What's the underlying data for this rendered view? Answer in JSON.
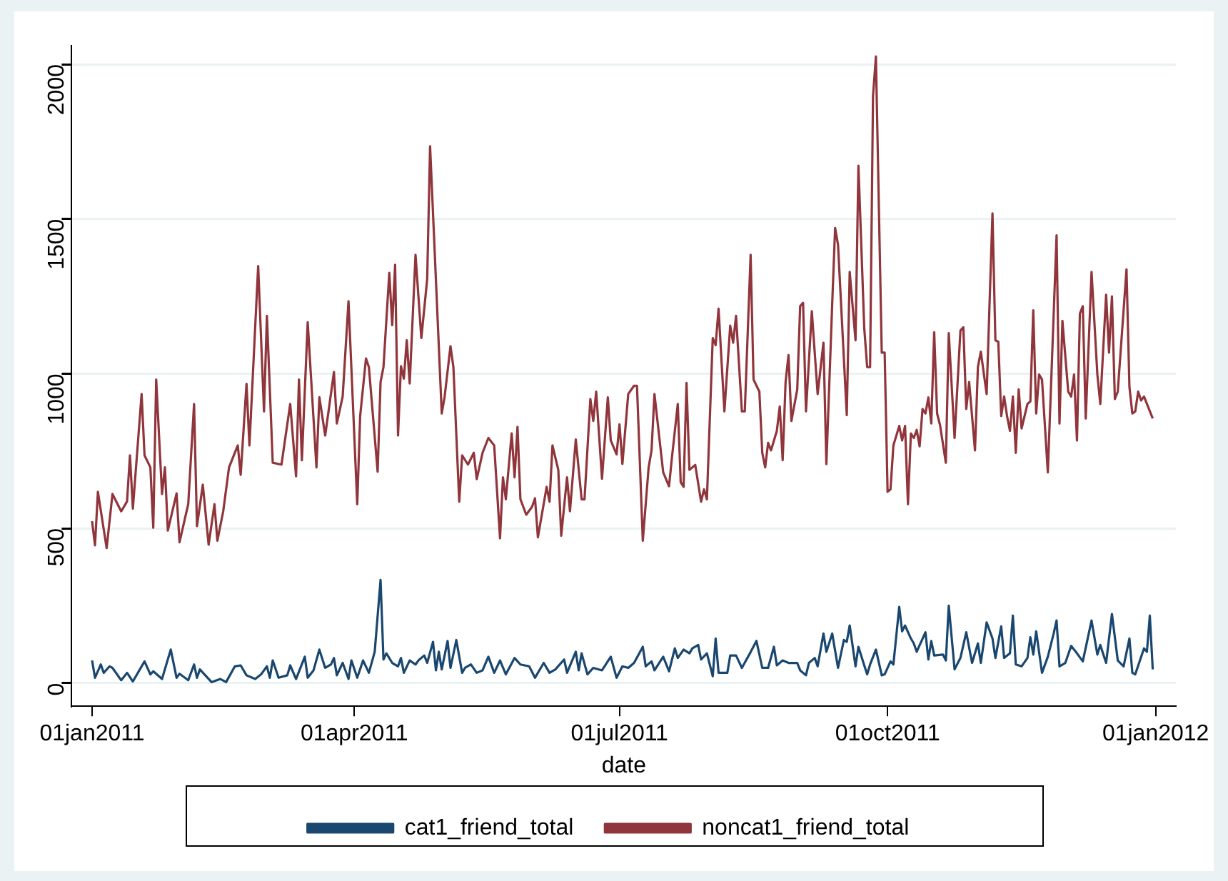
{
  "chart_data": {
    "type": "line",
    "xlabel": "date",
    "grid": "y",
    "legend": "bottom",
    "xlim": [
      "2010-12-25",
      "2012-01-08"
    ],
    "xticks": [
      {
        "value": "2011-01-01",
        "label": "01jan2011"
      },
      {
        "value": "2011-04-01",
        "label": "01apr2011"
      },
      {
        "value": "2011-07-01",
        "label": "01jul2011"
      },
      {
        "value": "2011-10-01",
        "label": "01oct2011"
      },
      {
        "value": "2012-01-01",
        "label": "01jan2012"
      }
    ],
    "ylim": [
      -75,
      2060
    ],
    "yticks": [
      0,
      500,
      1000,
      1500,
      2000
    ],
    "series": [
      {
        "name": "cat1_friend_total",
        "color": "#1a476f",
        "x": [
          "2011-01-01",
          "2011-01-02",
          "2011-01-04",
          "2011-01-05",
          "2011-01-07",
          "2011-01-08",
          "2011-01-11",
          "2011-01-13",
          "2011-01-15",
          "2011-01-19",
          "2011-01-21",
          "2011-01-22",
          "2011-01-25",
          "2011-01-28",
          "2011-01-30",
          "2011-01-31",
          "2011-02-03",
          "2011-02-05",
          "2011-02-06",
          "2011-02-07",
          "2011-02-11",
          "2011-02-14",
          "2011-02-16",
          "2011-02-19",
          "2011-02-21",
          "2011-02-23",
          "2011-02-26",
          "2011-02-28",
          "2011-03-02",
          "2011-03-03",
          "2011-03-04",
          "2011-03-06",
          "2011-03-09",
          "2011-03-10",
          "2011-03-12",
          "2011-03-15",
          "2011-03-16",
          "2011-03-18",
          "2011-03-20",
          "2011-03-22",
          "2011-03-24",
          "2011-03-25",
          "2011-03-26",
          "2011-03-28",
          "2011-03-30",
          "2011-03-31",
          "2011-04-02",
          "2011-04-04",
          "2011-04-06",
          "2011-04-08",
          "2011-04-10",
          "2011-04-11",
          "2011-04-12",
          "2011-04-14",
          "2011-04-16",
          "2011-04-17",
          "2011-04-18",
          "2011-04-20",
          "2011-04-22",
          "2011-04-23",
          "2011-04-25",
          "2011-04-26",
          "2011-04-28",
          "2011-04-29",
          "2011-04-30",
          "2011-05-01",
          "2011-05-03",
          "2011-05-04",
          "2011-05-06",
          "2011-05-08",
          "2011-05-09",
          "2011-05-11",
          "2011-05-13",
          "2011-05-15",
          "2011-05-17",
          "2011-05-19",
          "2011-05-21",
          "2011-05-23",
          "2011-05-26",
          "2011-05-28",
          "2011-05-31",
          "2011-06-02",
          "2011-06-05",
          "2011-06-07",
          "2011-06-09",
          "2011-06-12",
          "2011-06-13",
          "2011-06-16",
          "2011-06-17",
          "2011-06-18",
          "2011-06-20",
          "2011-06-22",
          "2011-06-25",
          "2011-06-28",
          "2011-06-30",
          "2011-07-02",
          "2011-07-04",
          "2011-07-06",
          "2011-07-09",
          "2011-07-10",
          "2011-07-12",
          "2011-07-13",
          "2011-07-16",
          "2011-07-18",
          "2011-07-20",
          "2011-07-21",
          "2011-07-23",
          "2011-07-25",
          "2011-07-26",
          "2011-07-28",
          "2011-07-29",
          "2011-07-31",
          "2011-08-02",
          "2011-08-03",
          "2011-08-04",
          "2011-08-07",
          "2011-08-08",
          "2011-08-10",
          "2011-08-12",
          "2011-08-15",
          "2011-08-17",
          "2011-08-19",
          "2011-08-21",
          "2011-08-23",
          "2011-08-24",
          "2011-08-26",
          "2011-08-28",
          "2011-08-31",
          "2011-09-01",
          "2011-09-03",
          "2011-09-04",
          "2011-09-06",
          "2011-09-07",
          "2011-09-09",
          "2011-09-10",
          "2011-09-12",
          "2011-09-14",
          "2011-09-16",
          "2011-09-17",
          "2011-09-18",
          "2011-09-20",
          "2011-09-21",
          "2011-09-23",
          "2011-09-24",
          "2011-09-25",
          "2011-09-27",
          "2011-09-29",
          "2011-09-30",
          "2011-10-02",
          "2011-10-03",
          "2011-10-05",
          "2011-10-06",
          "2011-10-07",
          "2011-10-09",
          "2011-10-10",
          "2011-10-11",
          "2011-10-14",
          "2011-10-15",
          "2011-10-16",
          "2011-10-17",
          "2011-10-20",
          "2011-10-21",
          "2011-10-22",
          "2011-10-24",
          "2011-10-26",
          "2011-10-28",
          "2011-10-30",
          "2011-11-01",
          "2011-11-02",
          "2011-11-04",
          "2011-11-06",
          "2011-11-07",
          "2011-11-09",
          "2011-11-10",
          "2011-11-12",
          "2011-11-13",
          "2011-11-14",
          "2011-11-16",
          "2011-11-18",
          "2011-11-19",
          "2011-11-20",
          "2011-11-21",
          "2011-11-23",
          "2011-11-25",
          "2011-11-27",
          "2011-11-28",
          "2011-11-29",
          "2011-12-01",
          "2011-12-03",
          "2011-12-05",
          "2011-12-07",
          "2011-12-10",
          "2011-12-12",
          "2011-12-13",
          "2011-12-15",
          "2011-12-17",
          "2011-12-19",
          "2011-12-21",
          "2011-12-23",
          "2011-12-24",
          "2011-12-25",
          "2011-12-28",
          "2011-12-29",
          "2011-12-30",
          "2011-12-31"
        ],
        "values": [
          73,
          17,
          60,
          33,
          54,
          49,
          9,
          33,
          5,
          70,
          28,
          38,
          13,
          108,
          17,
          30,
          9,
          60,
          17,
          44,
          3,
          13,
          3,
          54,
          57,
          25,
          13,
          28,
          54,
          17,
          73,
          17,
          25,
          57,
          13,
          85,
          17,
          41,
          108,
          49,
          60,
          81,
          25,
          65,
          13,
          73,
          17,
          73,
          33,
          101,
          333,
          76,
          96,
          65,
          54,
          81,
          33,
          73,
          60,
          73,
          89,
          65,
          133,
          41,
          101,
          44,
          136,
          49,
          139,
          33,
          49,
          60,
          33,
          41,
          85,
          33,
          73,
          28,
          81,
          60,
          54,
          17,
          65,
          33,
          44,
          76,
          33,
          101,
          41,
          96,
          28,
          49,
          41,
          85,
          17,
          54,
          49,
          65,
          117,
          54,
          70,
          41,
          85,
          38,
          112,
          81,
          108,
          96,
          112,
          123,
          76,
          96,
          22,
          144,
          33,
          33,
          89,
          89,
          49,
          100,
          136,
          49,
          49,
          117,
          57,
          73,
          65,
          65,
          41,
          25,
          65,
          81,
          54,
          160,
          101,
          160,
          49,
          139,
          133,
          186,
          54,
          117,
          57,
          28,
          60,
          108,
          25,
          28,
          70,
          60,
          246,
          167,
          186,
          144,
          128,
          101,
          164,
          76,
          136,
          89,
          92,
          73,
          250,
          44,
          81,
          164,
          65,
          128,
          65,
          196,
          144,
          81,
          183,
          81,
          96,
          218,
          60,
          54,
          81,
          148,
          92,
          167,
          33,
          85,
          160,
          202,
          54,
          65,
          120,
          96,
          70,
          202,
          92,
          123,
          65,
          223,
          73,
          54,
          144,
          33,
          28,
          112,
          101,
          218,
          44
        ]
      },
      {
        "name": "noncat1_friend_total",
        "color": "#90353b",
        "x": [
          "2011-01-01",
          "2011-01-02",
          "2011-01-03",
          "2011-01-06",
          "2011-01-08",
          "2011-01-11",
          "2011-01-13",
          "2011-01-14",
          "2011-01-15",
          "2011-01-18",
          "2011-01-19",
          "2011-01-21",
          "2011-01-22",
          "2011-01-23",
          "2011-01-25",
          "2011-01-26",
          "2011-01-27",
          "2011-01-30",
          "2011-01-31",
          "2011-02-03",
          "2011-02-05",
          "2011-02-06",
          "2011-02-08",
          "2011-02-10",
          "2011-02-12",
          "2011-02-13",
          "2011-02-15",
          "2011-02-17",
          "2011-02-20",
          "2011-02-21",
          "2011-02-23",
          "2011-02-24",
          "2011-02-27",
          "2011-03-01",
          "2011-03-02",
          "2011-03-04",
          "2011-03-07",
          "2011-03-10",
          "2011-03-12",
          "2011-03-13",
          "2011-03-14",
          "2011-03-16",
          "2011-03-19",
          "2011-03-20",
          "2011-03-22",
          "2011-03-25",
          "2011-03-26",
          "2011-03-28",
          "2011-03-30",
          "2011-04-02",
          "2011-04-03",
          "2011-04-05",
          "2011-04-06",
          "2011-04-09",
          "2011-04-10",
          "2011-04-11",
          "2011-04-13",
          "2011-04-14",
          "2011-04-15",
          "2011-04-16",
          "2011-04-17",
          "2011-04-18",
          "2011-04-19",
          "2011-04-20",
          "2011-04-22",
          "2011-04-24",
          "2011-04-26",
          "2011-04-27",
          "2011-05-01",
          "2011-05-02",
          "2011-05-04",
          "2011-05-05",
          "2011-05-07",
          "2011-05-08",
          "2011-05-10",
          "2011-05-12",
          "2011-05-13",
          "2011-05-15",
          "2011-05-17",
          "2011-05-19",
          "2011-05-21",
          "2011-05-22",
          "2011-05-23",
          "2011-05-25",
          "2011-05-26",
          "2011-05-27",
          "2011-05-28",
          "2011-05-30",
          "2011-06-01",
          "2011-06-02",
          "2011-06-03",
          "2011-06-06",
          "2011-06-07",
          "2011-06-08",
          "2011-06-10",
          "2011-06-11",
          "2011-06-13",
          "2011-06-14",
          "2011-06-16",
          "2011-06-18",
          "2011-06-19",
          "2011-06-21",
          "2011-06-22",
          "2011-06-23",
          "2011-06-25",
          "2011-06-27",
          "2011-06-28",
          "2011-06-30",
          "2011-07-01",
          "2011-07-02",
          "2011-07-04",
          "2011-07-06",
          "2011-07-07",
          "2011-07-09",
          "2011-07-11",
          "2011-07-12",
          "2011-07-13",
          "2011-07-16",
          "2011-07-18",
          "2011-07-19",
          "2011-07-21",
          "2011-07-22",
          "2011-07-23",
          "2011-07-24",
          "2011-07-25",
          "2011-07-27",
          "2011-07-29",
          "2011-07-30",
          "2011-07-31",
          "2011-08-02",
          "2011-08-03",
          "2011-08-04",
          "2011-08-06",
          "2011-08-08",
          "2011-08-09",
          "2011-08-10",
          "2011-08-12",
          "2011-08-13",
          "2011-08-15",
          "2011-08-16",
          "2011-08-18",
          "2011-08-19",
          "2011-08-20",
          "2011-08-21",
          "2011-08-22",
          "2011-08-24",
          "2011-08-25",
          "2011-08-26",
          "2011-08-27",
          "2011-08-28",
          "2011-08-29",
          "2011-08-31",
          "2011-09-01",
          "2011-09-02",
          "2011-09-03",
          "2011-09-05",
          "2011-09-07",
          "2011-09-09",
          "2011-09-10",
          "2011-09-12",
          "2011-09-13",
          "2011-09-14",
          "2011-09-17",
          "2011-09-18",
          "2011-09-20",
          "2011-09-21",
          "2011-09-23",
          "2011-09-24",
          "2011-09-25",
          "2011-09-26",
          "2011-09-27",
          "2011-09-29",
          "2011-09-30",
          "2011-10-01",
          "2011-10-02",
          "2011-10-03",
          "2011-10-05",
          "2011-10-06",
          "2011-10-07",
          "2011-10-08",
          "2011-10-09",
          "2011-10-10",
          "2011-10-11",
          "2011-10-12",
          "2011-10-13",
          "2011-10-14",
          "2011-10-15",
          "2011-10-16",
          "2011-10-17",
          "2011-10-18",
          "2011-10-19",
          "2011-10-21",
          "2011-10-22",
          "2011-10-24",
          "2011-10-26",
          "2011-10-27",
          "2011-10-28",
          "2011-10-29",
          "2011-10-31",
          "2011-11-01",
          "2011-11-02",
          "2011-11-04",
          "2011-11-06",
          "2011-11-07",
          "2011-11-08",
          "2011-11-09",
          "2011-11-10",
          "2011-11-11",
          "2011-11-12",
          "2011-11-13",
          "2011-11-14",
          "2011-11-15",
          "2011-11-16",
          "2011-11-18",
          "2011-11-19",
          "2011-11-20",
          "2011-11-21",
          "2011-11-22",
          "2011-11-23",
          "2011-11-25",
          "2011-11-28",
          "2011-11-29",
          "2011-11-30",
          "2011-12-02",
          "2011-12-03",
          "2011-12-04",
          "2011-12-05",
          "2011-12-06",
          "2011-12-07",
          "2011-12-08",
          "2011-12-10",
          "2011-12-12",
          "2011-12-13",
          "2011-12-15",
          "2011-12-16",
          "2011-12-17",
          "2011-12-18",
          "2011-12-19",
          "2011-12-22",
          "2011-12-23",
          "2011-12-24",
          "2011-12-25",
          "2011-12-26",
          "2011-12-27",
          "2011-12-28",
          "2011-12-31"
        ],
        "values": [
          523,
          445,
          618,
          436,
          611,
          555,
          587,
          736,
          564,
          934,
          736,
          697,
          502,
          981,
          611,
          697,
          493,
          613,
          455,
          578,
          902,
          507,
          641,
          447,
          578,
          460,
          555,
          697,
          768,
          673,
          967,
          768,
          1348,
          878,
          1187,
          712,
          706,
          902,
          668,
          981,
          720,
          1166,
          697,
          924,
          800,
          1005,
          839,
          926,
          1234,
          578,
          863,
          1049,
          1021,
          683,
          973,
          1021,
          1326,
          1157,
          1352,
          800,
          1024,
          984,
          1108,
          968,
          1384,
          1115,
          1305,
          1735,
          871,
          926,
          1089,
          1021,
          586,
          736,
          706,
          744,
          659,
          744,
          792,
          768,
          468,
          665,
          594,
          807,
          665,
          828,
          594,
          544,
          570,
          597,
          471,
          634,
          586,
          768,
          689,
          476,
          665,
          555,
          787,
          594,
          594,
          918,
          847,
          942,
          660,
          923,
          784,
          739,
          836,
          708,
          934,
          961,
          961,
          460,
          697,
          752,
          934,
          681,
          636,
          729,
          902,
          649,
          634,
          970,
          689,
          705,
          586,
          626,
          594,
          1115,
          1092,
          1210,
          878,
          1155,
          1100,
          1187,
          878,
          878,
          1384,
          981,
          942,
          744,
          697,
          776,
          752,
          815,
          894,
          720,
          973,
          1060,
          847,
          949,
          1218,
          1229,
          878,
          1202,
          934,
          1100,
          708,
          1226,
          1471,
          1416,
          866,
          1329,
          1108,
          1672,
          1147,
          1021,
          1021,
          1897,
          2025,
          1068,
          1068,
          618,
          626,
          768,
          831,
          784,
          831,
          578,
          807,
          792,
          818,
          765,
          886,
          871,
          923,
          839,
          1134,
          871,
          834,
          712,
          1131,
          792,
          1139,
          1150,
          886,
          973,
          752,
          1021,
          1071,
          934,
          1518,
          1108,
          1103,
          863,
          926,
          863,
          815,
          926,
          744,
          949,
          823,
          902,
          910,
          1205,
          871,
          997,
          981,
          681,
          1447,
          839,
          1171,
          942,
          926,
          997,
          784,
          1194,
          1218,
          855,
          1329,
          997,
          902,
          1255,
          1068,
          1250,
          918,
          942,
          1337,
          957,
          871,
          878,
          942,
          913,
          926,
          855
        ]
      }
    ]
  }
}
